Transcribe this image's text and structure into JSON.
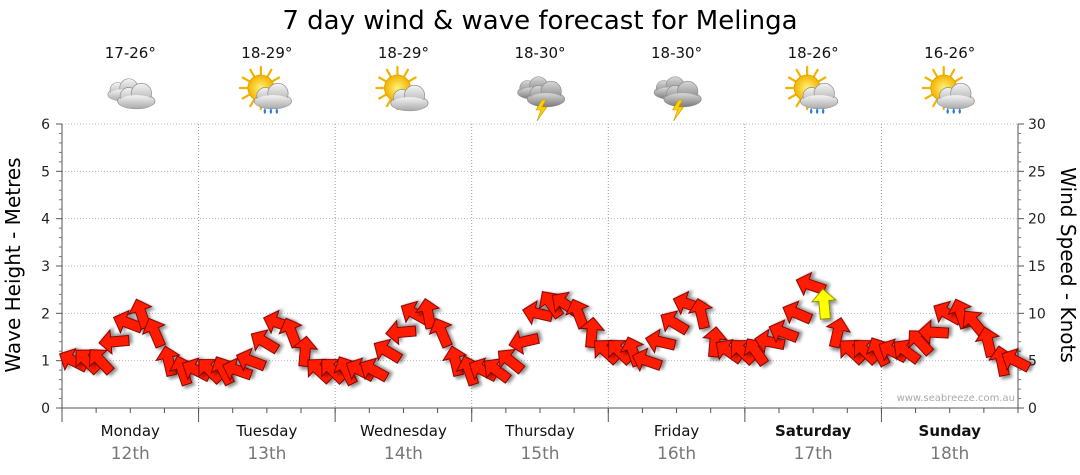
{
  "chart_data": {
    "type": "line",
    "title": "7 day wind & wave forecast for Melinga",
    "y_left": {
      "label": "Wave Height - Metres",
      "range": [
        0,
        6
      ],
      "ticks": [
        0,
        1,
        2,
        3,
        4,
        5,
        6
      ]
    },
    "y_right": {
      "label": "Wind Speed - Knots",
      "range": [
        0,
        30
      ],
      "ticks": [
        0,
        5,
        10,
        15,
        20,
        25,
        30
      ]
    },
    "grid": true,
    "credit": "www.seabreeze.com.au",
    "days": [
      {
        "name": "Monday",
        "date": "12th",
        "temp": "17-26°",
        "icon": "cloudy-icon",
        "bold": false
      },
      {
        "name": "Tuesday",
        "date": "13th",
        "temp": "18-29°",
        "icon": "sun-cloud-rain-icon",
        "bold": false
      },
      {
        "name": "Wednesday",
        "date": "14th",
        "temp": "18-29°",
        "icon": "sun-cloud-icon",
        "bold": false
      },
      {
        "name": "Thursday",
        "date": "15th",
        "temp": "18-30°",
        "icon": "storm-icon",
        "bold": false
      },
      {
        "name": "Friday",
        "date": "16th",
        "temp": "18-30°",
        "icon": "storm-icon",
        "bold": false
      },
      {
        "name": "Saturday",
        "date": "17th",
        "temp": "18-26°",
        "icon": "sun-cloud-rain-icon",
        "bold": true
      },
      {
        "name": "Sunday",
        "date": "18th",
        "temp": "16-26°",
        "icon": "sun-cloud-rain-icon",
        "bold": true
      }
    ],
    "series": [
      {
        "name": "Wind Speed",
        "unit": "knots",
        "x_days": [
          0.0,
          0.1,
          0.2,
          0.3,
          0.4,
          0.5,
          0.6,
          0.7,
          0.8,
          0.9,
          1.0,
          1.1,
          1.2,
          1.3,
          1.4,
          1.5,
          1.6,
          1.7,
          1.8,
          1.9,
          2.0,
          2.1,
          2.2,
          2.3,
          2.4,
          2.5,
          2.6,
          2.7,
          2.8,
          2.9,
          3.0,
          3.1,
          3.2,
          3.3,
          3.4,
          3.5,
          3.6,
          3.7,
          3.8,
          3.9,
          4.0,
          4.1,
          4.2,
          4.3,
          4.4,
          4.5,
          4.6,
          4.7,
          4.8,
          4.9,
          5.0,
          5.1,
          5.2,
          5.3,
          5.4,
          5.5,
          5.6,
          5.7,
          5.8,
          5.9,
          6.0,
          6.1,
          6.2,
          6.3,
          6.4,
          6.5,
          6.6,
          6.7,
          6.8,
          6.9
        ],
        "values": [
          5,
          5,
          5,
          7,
          9,
          10,
          8,
          5,
          4,
          4,
          4,
          4,
          4,
          5,
          7,
          9,
          8,
          6,
          4,
          4,
          4,
          4,
          4,
          6,
          8,
          10,
          10,
          8,
          5,
          4,
          4,
          4,
          5,
          7,
          10,
          11,
          11,
          10,
          8,
          6,
          6,
          6,
          5,
          7,
          9,
          11,
          10,
          7,
          6,
          6,
          6,
          7,
          8,
          10,
          13,
          11,
          8,
          6,
          6,
          6,
          6,
          6,
          7,
          8,
          10,
          10,
          9,
          7,
          5,
          5
        ],
        "highlight_x_days": [
          5.5
        ],
        "highlight_color": "#ffff00"
      }
    ]
  }
}
